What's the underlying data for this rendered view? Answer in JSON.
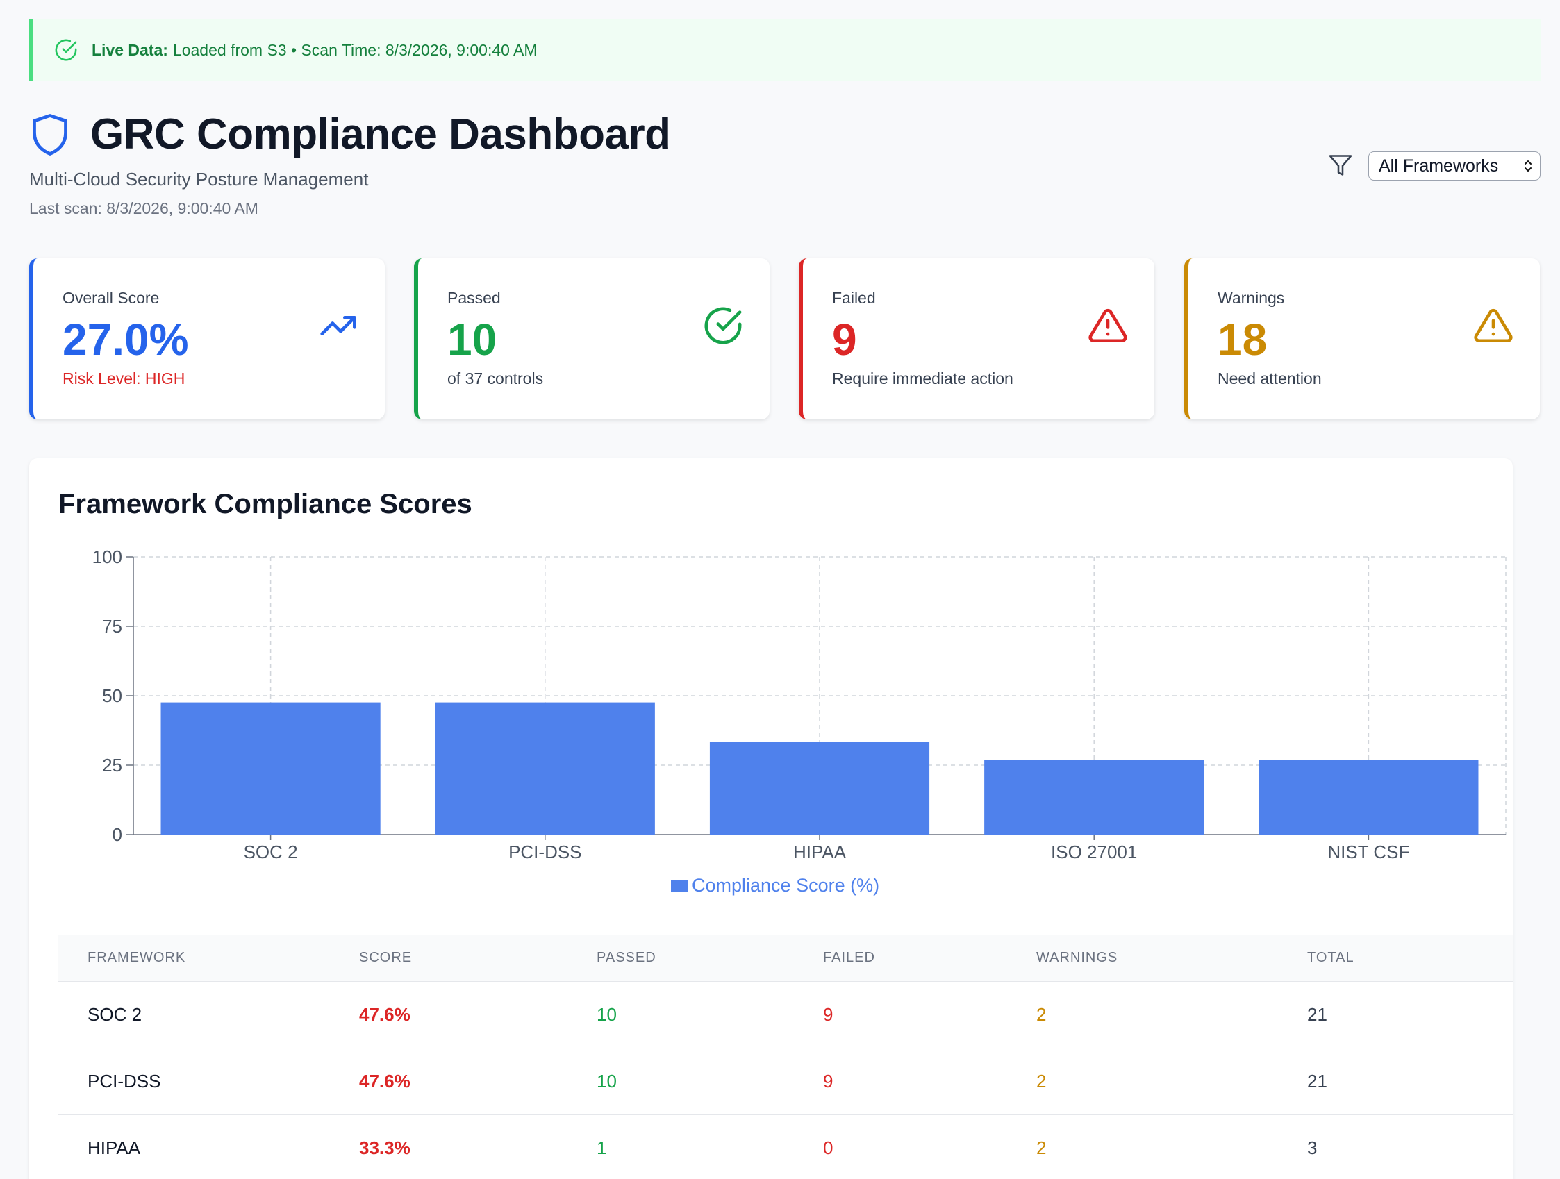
{
  "banner": {
    "label": "Live Data:",
    "text": "Loaded from S3 • Scan Time: 8/3/2026, 9:00:40 AM",
    "icon": "check-circle-icon"
  },
  "header": {
    "title": "GRC Compliance Dashboard",
    "subtitle": "Multi-Cloud Security Posture Management",
    "last_scan": "Last scan: 8/3/2026, 9:00:40 AM",
    "filter_value": "All Frameworks"
  },
  "cards": [
    {
      "label": "Overall Score",
      "value": "27.0%",
      "sub": "Risk Level: HIGH",
      "icon": "trending-up-icon"
    },
    {
      "label": "Passed",
      "value": "10",
      "sub": "of 37 controls",
      "icon": "check-circle-icon"
    },
    {
      "label": "Failed",
      "value": "9",
      "sub": "Require immediate action",
      "icon": "alert-triangle-icon"
    },
    {
      "label": "Warnings",
      "value": "18",
      "sub": "Need attention",
      "icon": "alert-triangle-icon"
    }
  ],
  "colors": {
    "blue": "#2563eb",
    "green": "#16a34a",
    "red": "#dc2626",
    "amber": "#ca8a04",
    "bar": "#4f81ec"
  },
  "panel": {
    "title": "Framework Compliance Scores"
  },
  "chart_data": {
    "type": "bar",
    "categories": [
      "SOC 2",
      "PCI-DSS",
      "HIPAA",
      "ISO 27001",
      "NIST CSF"
    ],
    "series": [
      {
        "name": "Compliance Score (%)",
        "values": [
          47.6,
          47.6,
          33.3,
          27.0,
          27.0
        ]
      }
    ],
    "ylim": [
      0,
      100
    ],
    "yticks": [
      0,
      25,
      50,
      75,
      100
    ],
    "grid": true,
    "legend": "bottom-center"
  },
  "table": {
    "headers": [
      "Framework",
      "Score",
      "Passed",
      "Failed",
      "Warnings",
      "Total"
    ],
    "rows": [
      {
        "framework": "SOC 2",
        "score": "47.6%",
        "passed": "10",
        "failed": "9",
        "warnings": "2",
        "total": "21"
      },
      {
        "framework": "PCI-DSS",
        "score": "47.6%",
        "passed": "10",
        "failed": "9",
        "warnings": "2",
        "total": "21"
      },
      {
        "framework": "HIPAA",
        "score": "33.3%",
        "passed": "1",
        "failed": "0",
        "warnings": "2",
        "total": "3"
      }
    ]
  }
}
